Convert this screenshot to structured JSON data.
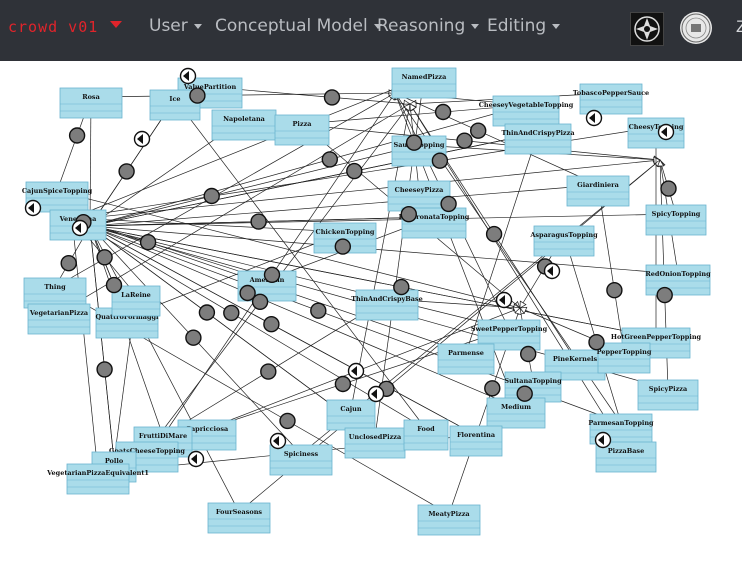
{
  "navbar": {
    "brand": "crowd v01",
    "menus": [
      {
        "label": "User"
      },
      {
        "label": "Conceptual Model"
      },
      {
        "label": "Reasoning"
      },
      {
        "label": "Editing"
      }
    ],
    "right_text": "Z"
  },
  "colors": {
    "navbar_bg": "#2f3238",
    "brand": "#e0242b",
    "menu_text": "#b9bcc1",
    "node_fill": "#aadcea",
    "node_stroke": "#6ab4cf",
    "connector_fill": "#7d7d7d"
  },
  "diagram": {
    "nodes": [
      {
        "label": "Rosa"
      },
      {
        "label": "ValuePartition"
      },
      {
        "label": "Ice"
      },
      {
        "label": "NamedPizza"
      },
      {
        "label": "Napoletana"
      },
      {
        "label": "Pizza"
      },
      {
        "label": "CheeseyVegetableTopping"
      },
      {
        "label": "TobascoPepperSauce"
      },
      {
        "label": "ThinAndCrispyPizza"
      },
      {
        "label": "CheesyTopping"
      },
      {
        "label": "SauceTopping"
      },
      {
        "label": "CajunSpiceTopping"
      },
      {
        "label": "Giardiniera"
      },
      {
        "label": "CheeseyPizza"
      },
      {
        "label": "PeperonataTopping"
      },
      {
        "label": "ChickenTopping"
      },
      {
        "label": "SpicyTopping"
      },
      {
        "label": "AsparagusTopping"
      },
      {
        "label": "Thing"
      },
      {
        "label": "VegetarianPizza"
      },
      {
        "label": "QuattroFormaggi"
      },
      {
        "label": "American"
      },
      {
        "label": "RedOnionTopping"
      },
      {
        "label": "ThinAndCrispyBase"
      },
      {
        "label": "SweetPepperTopping"
      },
      {
        "label": "PineKernels"
      },
      {
        "label": "HotGreenPepperTopping"
      },
      {
        "label": "Parmense"
      },
      {
        "label": "SpicyPizza"
      },
      {
        "label": "SultanaTopping"
      },
      {
        "label": "Medium"
      },
      {
        "label": "Cajun"
      },
      {
        "label": "UnclosedPizza"
      },
      {
        "label": "Food"
      },
      {
        "label": "Spiciness"
      },
      {
        "label": "Capricciosa"
      },
      {
        "label": "FruttiDiMare"
      },
      {
        "label": "GoatsCheeseTopping"
      },
      {
        "label": "Pollo"
      },
      {
        "label": "VegetarianPizzaEquivalent1"
      },
      {
        "label": "FourSeasons"
      },
      {
        "label": "MeatyPizza"
      },
      {
        "label": "ParmesanTopping"
      },
      {
        "label": "PizzaBase"
      },
      {
        "label": "Florentina"
      },
      {
        "label": "LaReine"
      },
      {
        "label": "Veneziana"
      },
      {
        "label": "PepperTopping"
      }
    ]
  }
}
